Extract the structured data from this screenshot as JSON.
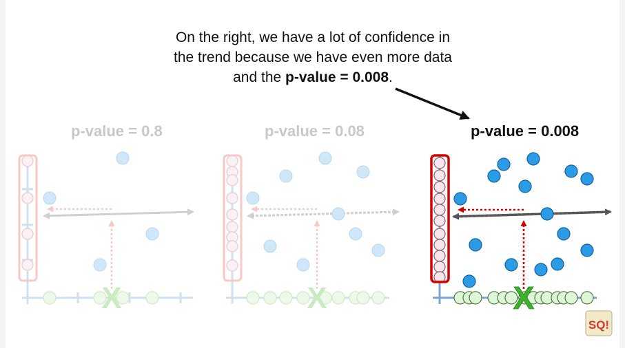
{
  "caption": {
    "line1": "On the right, we have a lot of confidence in",
    "line2": "the trend because we have even more data",
    "line3_prefix": "and the ",
    "line3_bold": "p-value = 0.008",
    "line3_suffix": "."
  },
  "panels": [
    {
      "label": "p-value = 0.8",
      "state": "faded"
    },
    {
      "label": "p-value = 0.08",
      "state": "faded"
    },
    {
      "label": "p-value = 0.008",
      "state": "active"
    }
  ],
  "axis_marker": "X",
  "logo_text": "SQ!",
  "colors": {
    "blue_point": "#2a9be6",
    "blue_point_faded": "#cfe7f8",
    "red_box": "#d40000",
    "red_box_faded": "#f6c9c3",
    "green_point": "#dff5d8",
    "green_x": "#3ab22a",
    "green_x_faded": "#c8ebc0",
    "axis_blue": "#7aa6d0",
    "axis_blue_faded": "#cfe0f0",
    "arrow_dark": "#555555",
    "arrow_faded": "#cfcfcf",
    "pink_point": "#f8e6ee"
  }
}
